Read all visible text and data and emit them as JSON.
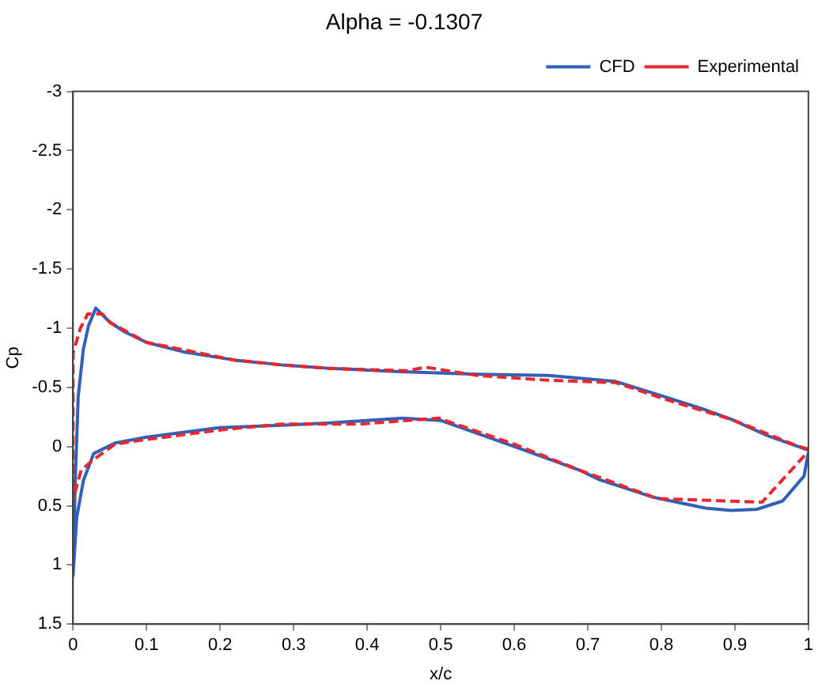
{
  "chart_data": {
    "type": "line",
    "title": "Alpha = -0.1307",
    "xlabel": "x/c",
    "ylabel": "Cp",
    "xlim": [
      0,
      1
    ],
    "xticks": [
      0,
      0.1,
      0.2,
      0.3,
      0.4,
      0.5,
      0.6,
      0.7,
      0.8,
      0.9,
      1
    ],
    "ylim": [
      1.5,
      -3
    ],
    "yticks": [
      -3,
      -2.5,
      -2,
      -1.5,
      -1,
      -0.5,
      0,
      0.5,
      1,
      1.5
    ],
    "grid": false,
    "legend": "top right",
    "marker": "none",
    "series": [
      {
        "name": "Experimental",
        "color": "#e8282e",
        "line_style": "dashed",
        "x": [
          1,
          0.987,
          0.895,
          0.8,
          0.738,
          0.646,
          0.55,
          0.48,
          0.454,
          0.348,
          0.284,
          0.22,
          0.1,
          0.05,
          0.04,
          0.02,
          0.01,
          0,
          0,
          0.011,
          0.028,
          0.057,
          0.1,
          0.2,
          0.284,
          0.39,
          0.497,
          0.6,
          0.689,
          0.795,
          0.937,
          1
        ],
        "values": [
          0.02,
          0,
          -0.23,
          -0.41,
          -0.54,
          -0.56,
          -0.6,
          -0.67,
          -0.64,
          -0.66,
          -0.69,
          -0.73,
          -0.88,
          -1.05,
          -1.12,
          -1.12,
          -1,
          -0.79,
          0.45,
          0.2,
          0.11,
          -0.02,
          -0.06,
          -0.14,
          -0.19,
          -0.19,
          -0.24,
          -0.02,
          0.2,
          0.44,
          0.47,
          0.04
        ]
      },
      {
        "name": "CFD",
        "color": "#3060b8",
        "line_style": "solid",
        "x": [
          1,
          0.945,
          0.895,
          0.86,
          0.8,
          0.738,
          0.646,
          0.55,
          0.454,
          0.35,
          0.284,
          0.22,
          0.15,
          0.1,
          0.07,
          0.05,
          0.031,
          0.021,
          0.014,
          0.007,
          0.003,
          0,
          0.005,
          0.014,
          0.028,
          0.057,
          0.1,
          0.2,
          0.284,
          0.35,
          0.448,
          0.5,
          0.6,
          0.689,
          0.716,
          0.79,
          0.86,
          0.895,
          0.93,
          0.965,
          0.994,
          1
        ],
        "values": [
          0.03,
          -0.09,
          -0.23,
          -0.31,
          -0.43,
          -0.55,
          -0.6,
          -0.61,
          -0.63,
          -0.66,
          -0.69,
          -0.73,
          -0.8,
          -0.88,
          -0.97,
          -1.05,
          -1.17,
          -1.02,
          -0.82,
          -0.42,
          0.3,
          1.09,
          0.6,
          0.29,
          0.06,
          -0.03,
          -0.08,
          -0.16,
          -0.18,
          -0.2,
          -0.24,
          -0.22,
          0,
          0.2,
          0.28,
          0.43,
          0.52,
          0.54,
          0.53,
          0.46,
          0.25,
          0.05
        ]
      }
    ]
  }
}
